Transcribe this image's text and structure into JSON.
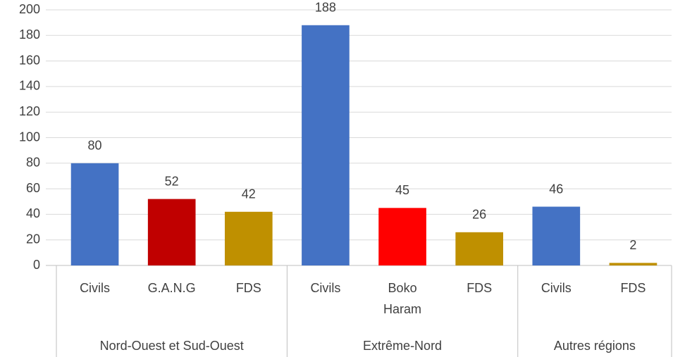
{
  "chart_data": {
    "type": "bar",
    "groups": [
      {
        "label": "Nord-Ouest et Sud-Ouest",
        "categories": [
          "Civils",
          "G.A.N.G",
          "FDS"
        ],
        "values": [
          80,
          52,
          42
        ],
        "colors": [
          "#4472c4",
          "#c00000",
          "#bf9000"
        ]
      },
      {
        "label": "Extrême-Nord",
        "categories": [
          "Civils",
          "Boko Haram",
          "FDS"
        ],
        "values": [
          188,
          45,
          26
        ],
        "colors": [
          "#4472c4",
          "#ff0000",
          "#bf9000"
        ]
      },
      {
        "label": "Autres régions",
        "categories": [
          "Civils",
          "FDS"
        ],
        "values": [
          46,
          2
        ],
        "colors": [
          "#4472c4",
          "#bf9000"
        ]
      }
    ],
    "ylim": [
      0,
      200
    ],
    "yticks": [
      0,
      20,
      40,
      60,
      80,
      100,
      120,
      140,
      160,
      180,
      200
    ],
    "grid": true
  }
}
